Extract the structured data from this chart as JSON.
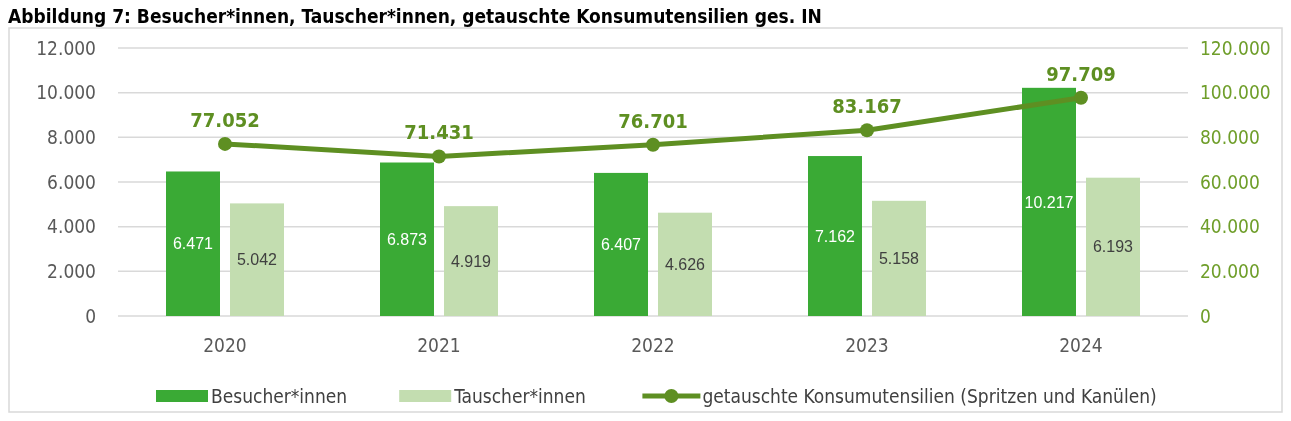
{
  "chart_data": {
    "type": "bar",
    "title": "Abbildung 7: Besucher*innen, Tauscher*innen, getauschte Konsumutensilien ges. IN",
    "categories": [
      "2020",
      "2021",
      "2022",
      "2023",
      "2024"
    ],
    "series": [
      {
        "name": "Besucher*innen",
        "color": "#3aaa35",
        "values": [
          6471,
          6873,
          6407,
          7162,
          10217
        ],
        "value_labels": [
          "6.471",
          "6.873",
          "6.407",
          "7.162",
          "10.217"
        ]
      },
      {
        "name": "Tauscher*innen",
        "color": "#c3ddb0",
        "values": [
          5042,
          4919,
          4626,
          5158,
          6193
        ],
        "value_labels": [
          "5.042",
          "4.919",
          "4.626",
          "5.158",
          "6.193"
        ]
      },
      {
        "name": "getauschte Konsumutensilien (Spritzen und Kanülen)",
        "type": "line",
        "axis": "y2",
        "color": "#5e8f22",
        "marker": "circle",
        "values": [
          77052,
          71431,
          76701,
          83167,
          97709
        ],
        "value_labels": [
          "77.052",
          "71.431",
          "76.701",
          "83.167",
          "97.709"
        ]
      }
    ],
    "ylim": [
      0,
      12000
    ],
    "yticks": [
      {
        "value": 0,
        "label": "0"
      },
      {
        "value": 2000,
        "label": "2.000"
      },
      {
        "value": 4000,
        "label": "4.000"
      },
      {
        "value": 6000,
        "label": "6.000"
      },
      {
        "value": 8000,
        "label": "8.000"
      },
      {
        "value": 10000,
        "label": "10.000"
      },
      {
        "value": 12000,
        "label": "12.000"
      }
    ],
    "y2lim": [
      0,
      120000
    ],
    "y2ticks": [
      {
        "value": 0,
        "label": "0"
      },
      {
        "value": 20000,
        "label": "20.000"
      },
      {
        "value": 40000,
        "label": "40.000"
      },
      {
        "value": 60000,
        "label": "60.000"
      },
      {
        "value": 80000,
        "label": "80.000"
      },
      {
        "value": 100000,
        "label": "100.000"
      },
      {
        "value": 120000,
        "label": "120.000"
      }
    ],
    "grid": "y",
    "legend": "bottom"
  }
}
